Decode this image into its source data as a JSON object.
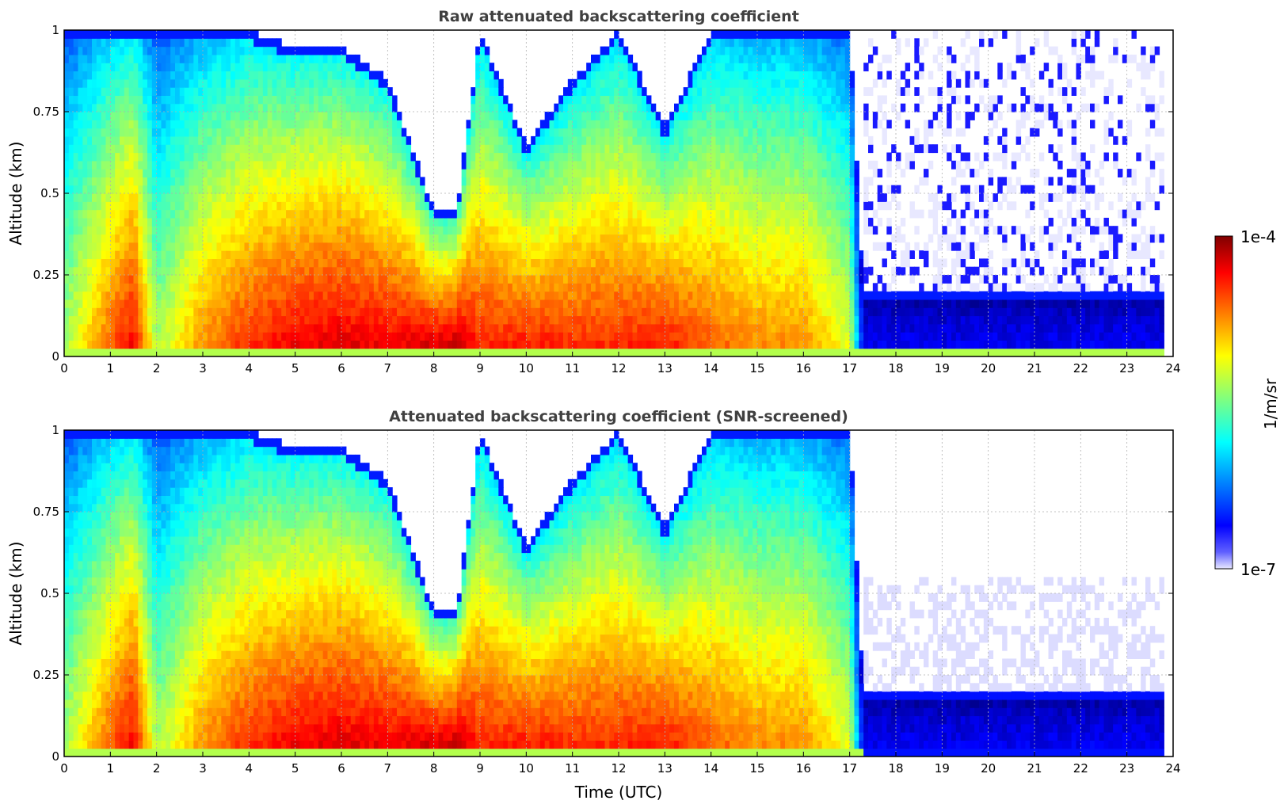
{
  "chart_data": [
    {
      "type": "heatmap",
      "title": "Raw attenuated backscattering coefficient",
      "xlabel": "",
      "ylabel": "Altitude (km)",
      "xlim": [
        0,
        24
      ],
      "ylim": [
        0,
        1
      ],
      "x_ticks": [
        "0",
        "1",
        "2",
        "3",
        "4",
        "5",
        "6",
        "7",
        "8",
        "9",
        "10",
        "11",
        "12",
        "13",
        "14",
        "15",
        "16",
        "17",
        "18",
        "19",
        "20",
        "21",
        "22",
        "23",
        "24"
      ],
      "y_ticks": [
        "0",
        "0.25",
        "0.5",
        "0.75",
        "1"
      ],
      "grid": true,
      "colorscale": "jet",
      "data_end_time": 23.8,
      "profiles": [
        {
          "time": 0.0,
          "top_alt": 1.0,
          "peak_level": 0.55
        },
        {
          "time": 1.0,
          "top_alt": 1.0,
          "peak_level": 0.8
        },
        {
          "time": 1.5,
          "top_alt": 1.0,
          "peak_level": 0.9
        },
        {
          "time": 2.0,
          "top_alt": 1.0,
          "peak_level": 0.55
        },
        {
          "time": 3.0,
          "top_alt": 1.0,
          "peak_level": 0.75
        },
        {
          "time": 4.0,
          "top_alt": 1.0,
          "peak_level": 0.85
        },
        {
          "time": 5.0,
          "top_alt": 0.95,
          "peak_level": 0.9
        },
        {
          "time": 6.0,
          "top_alt": 0.95,
          "peak_level": 0.92
        },
        {
          "time": 7.0,
          "top_alt": 0.85,
          "peak_level": 0.9
        },
        {
          "time": 8.0,
          "top_alt": 0.45,
          "peak_level": 0.95
        },
        {
          "time": 8.5,
          "top_alt": 0.45,
          "peak_level": 0.97
        },
        {
          "time": 9.0,
          "top_alt": 1.0,
          "peak_level": 0.85
        },
        {
          "time": 10.0,
          "top_alt": 0.65,
          "peak_level": 0.88
        },
        {
          "time": 11.0,
          "top_alt": 0.85,
          "peak_level": 0.85
        },
        {
          "time": 12.0,
          "top_alt": 1.0,
          "peak_level": 0.85
        },
        {
          "time": 13.0,
          "top_alt": 0.7,
          "peak_level": 0.88
        },
        {
          "time": 14.0,
          "top_alt": 1.0,
          "peak_level": 0.8
        },
        {
          "time": 15.0,
          "top_alt": 1.0,
          "peak_level": 0.75
        },
        {
          "time": 16.0,
          "top_alt": 1.0,
          "peak_level": 0.75
        },
        {
          "time": 17.0,
          "top_alt": 1.0,
          "peak_level": 0.6
        },
        {
          "time": 17.3,
          "top_alt": 0.2,
          "peak_level": 0.12
        },
        {
          "time": 24.0,
          "top_alt": 0.2,
          "peak_level": 0.12
        }
      ]
    },
    {
      "type": "heatmap",
      "title": "Attenuated backscattering coefficient (SNR-screened)",
      "xlabel": "Time (UTC)",
      "ylabel": "Altitude (km)",
      "xlim": [
        0,
        24
      ],
      "ylim": [
        0,
        1
      ],
      "x_ticks": [
        "0",
        "1",
        "2",
        "3",
        "4",
        "5",
        "6",
        "7",
        "8",
        "9",
        "10",
        "11",
        "12",
        "13",
        "14",
        "15",
        "16",
        "17",
        "18",
        "19",
        "20",
        "21",
        "22",
        "23",
        "24"
      ],
      "y_ticks": [
        "0",
        "0.25",
        "0.5",
        "0.75",
        "1"
      ],
      "grid": true,
      "colorscale": "jet",
      "data_end_time": 23.8,
      "screened_after_time": 17.3,
      "screened_top_alt": 0.55,
      "screened_mask_color": "#000000"
    }
  ],
  "colorbar": {
    "label": "1/m/sr",
    "min_label": "1e-7",
    "max_label": "1e-4",
    "min_value": 1e-07,
    "max_value": 0.0001,
    "scale": "log"
  }
}
